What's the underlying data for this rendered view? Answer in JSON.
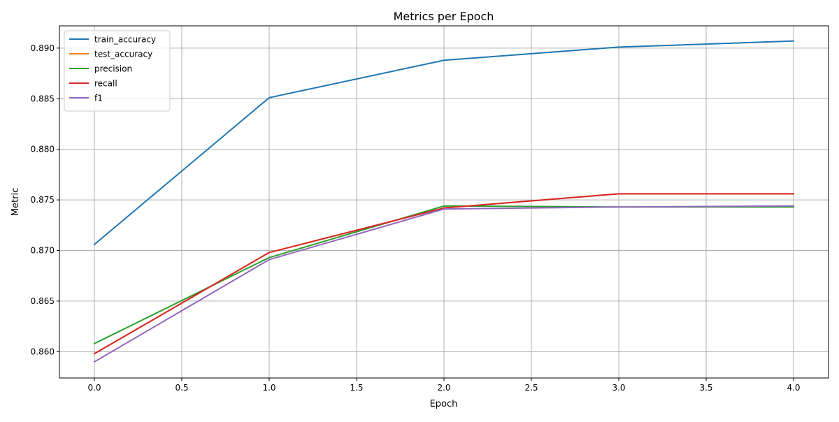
{
  "chart_data": {
    "type": "line",
    "title": "Metrics per Epoch",
    "xlabel": "Epoch",
    "ylabel": "Metric",
    "xlim": [
      -0.2,
      4.2
    ],
    "ylim": [
      0.8574,
      0.8922
    ],
    "xticks": [
      0.0,
      0.5,
      1.0,
      1.5,
      2.0,
      2.5,
      3.0,
      3.5,
      4.0
    ],
    "xtick_labels": [
      "0.0",
      "0.5",
      "1.0",
      "1.5",
      "2.0",
      "2.5",
      "3.0",
      "3.5",
      "4.0"
    ],
    "yticks": [
      0.86,
      0.865,
      0.87,
      0.875,
      0.88,
      0.885,
      0.89
    ],
    "ytick_labels": [
      "0.860",
      "0.865",
      "0.870",
      "0.875",
      "0.880",
      "0.885",
      "0.890"
    ],
    "grid": true,
    "legend_position": "top-left",
    "x": [
      0,
      1,
      2,
      3,
      4
    ],
    "series": [
      {
        "name": "train_accuracy",
        "color": "#1f77b4",
        "values": [
          0.8706,
          0.8851,
          0.8888,
          0.8901,
          0.8907
        ]
      },
      {
        "name": "test_accuracy",
        "color": "#ff7f0e",
        "values": [
          0.8598,
          0.8698,
          0.8742,
          0.8756,
          0.8756
        ]
      },
      {
        "name": "precision",
        "color": "#2ca02c",
        "values": [
          0.8608,
          0.8693,
          0.8744,
          0.8743,
          0.8743
        ]
      },
      {
        "name": "recall",
        "color": "#d62728",
        "values": [
          0.8598,
          0.8698,
          0.8742,
          0.8756,
          0.8756
        ]
      },
      {
        "name": "f1",
        "color": "#9467bd",
        "values": [
          0.859,
          0.8691,
          0.8741,
          0.8743,
          0.8744
        ]
      }
    ]
  }
}
